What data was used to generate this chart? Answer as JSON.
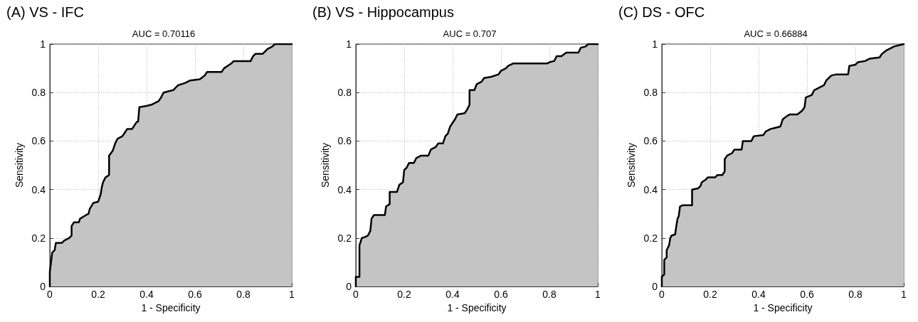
{
  "chart_data": [
    {
      "type": "area",
      "title": "(A) VS - IFC",
      "subtitle": "AUC = 0.70116",
      "xlabel": "1 - Specificity",
      "ylabel": "Sensitivity",
      "xlim": [
        0,
        1
      ],
      "ylim": [
        0,
        1
      ],
      "xticks": [
        0,
        0.2,
        0.4,
        0.6,
        0.8,
        1
      ],
      "yticks": [
        0,
        0.2,
        0.4,
        0.6,
        0.8,
        1
      ],
      "grid": true,
      "marker": "none",
      "line_style": "solid",
      "series": [
        {
          "color": "#c4c4c4",
          "x": [
            0,
            0,
            0.01,
            0.02,
            0.025,
            0.05,
            0.06,
            0.08,
            0.09,
            0.09,
            0.1,
            0.12,
            0.125,
            0.15,
            0.16,
            0.165,
            0.18,
            0.2,
            0.21,
            0.215,
            0.22,
            0.23,
            0.245,
            0.245,
            0.26,
            0.27,
            0.28,
            0.3,
            0.31,
            0.32,
            0.34,
            0.36,
            0.365,
            0.37,
            0.4,
            0.42,
            0.45,
            0.46,
            0.47,
            0.49,
            0.51,
            0.53,
            0.56,
            0.58,
            0.62,
            0.64,
            0.65,
            0.71,
            0.72,
            0.75,
            0.76,
            0.83,
            0.84,
            0.85,
            0.88,
            0.9,
            0.92,
            0.93,
            1
          ],
          "values": [
            0,
            0.06,
            0.14,
            0.15,
            0.18,
            0.18,
            0.19,
            0.2,
            0.21,
            0.25,
            0.265,
            0.265,
            0.28,
            0.295,
            0.3,
            0.32,
            0.345,
            0.35,
            0.38,
            0.41,
            0.43,
            0.45,
            0.46,
            0.54,
            0.56,
            0.59,
            0.61,
            0.62,
            0.635,
            0.65,
            0.65,
            0.68,
            0.68,
            0.74,
            0.745,
            0.75,
            0.765,
            0.78,
            0.8,
            0.805,
            0.81,
            0.83,
            0.84,
            0.85,
            0.855,
            0.87,
            0.885,
            0.885,
            0.9,
            0.92,
            0.93,
            0.93,
            0.95,
            0.96,
            0.96,
            0.98,
            0.99,
            1,
            1
          ]
        }
      ]
    },
    {
      "type": "area",
      "title": "(B) VS - Hippocampus",
      "subtitle": "AUC = 0.707",
      "xlabel": "1 - Specificity",
      "ylabel": "Sensitivity",
      "xlim": [
        0,
        1
      ],
      "ylim": [
        0,
        1
      ],
      "xticks": [
        0,
        0.2,
        0.4,
        0.6,
        0.8,
        1
      ],
      "yticks": [
        0,
        0.2,
        0.4,
        0.6,
        0.8,
        1
      ],
      "grid": true,
      "marker": "none",
      "line_style": "solid",
      "series": [
        {
          "color": "#c4c4c4",
          "x": [
            0,
            0,
            0.015,
            0.015,
            0.025,
            0.04,
            0.05,
            0.06,
            0.065,
            0.075,
            0.12,
            0.125,
            0.14,
            0.14,
            0.17,
            0.18,
            0.195,
            0.2,
            0.21,
            0.22,
            0.24,
            0.25,
            0.27,
            0.3,
            0.31,
            0.33,
            0.34,
            0.36,
            0.37,
            0.38,
            0.39,
            0.41,
            0.42,
            0.45,
            0.46,
            0.47,
            0.47,
            0.49,
            0.5,
            0.52,
            0.53,
            0.56,
            0.59,
            0.6,
            0.62,
            0.63,
            0.65,
            0.79,
            0.8,
            0.82,
            0.83,
            0.85,
            0.87,
            0.92,
            0.93,
            0.95,
            0.96,
            1
          ],
          "values": [
            0,
            0.04,
            0.04,
            0.17,
            0.2,
            0.205,
            0.21,
            0.23,
            0.28,
            0.295,
            0.295,
            0.33,
            0.34,
            0.39,
            0.39,
            0.42,
            0.43,
            0.48,
            0.49,
            0.51,
            0.51,
            0.53,
            0.54,
            0.54,
            0.565,
            0.575,
            0.59,
            0.59,
            0.62,
            0.63,
            0.66,
            0.69,
            0.71,
            0.715,
            0.73,
            0.75,
            0.81,
            0.81,
            0.835,
            0.845,
            0.86,
            0.865,
            0.875,
            0.89,
            0.9,
            0.91,
            0.92,
            0.92,
            0.925,
            0.93,
            0.95,
            0.95,
            0.965,
            0.965,
            0.985,
            0.99,
            1,
            1
          ]
        }
      ]
    },
    {
      "type": "area",
      "title": "(C) DS - OFC",
      "subtitle": "AUC = 0.66884",
      "xlabel": "1 - Specificity",
      "ylabel": "Sensitivity",
      "xlim": [
        0,
        1
      ],
      "ylim": [
        0,
        1
      ],
      "xticks": [
        0,
        0.2,
        0.4,
        0.6,
        0.8,
        1
      ],
      "yticks": [
        0,
        0.2,
        0.4,
        0.6,
        0.8,
        1
      ],
      "grid": true,
      "marker": "none",
      "line_style": "solid",
      "series": [
        {
          "color": "#c4c4c4",
          "x": [
            0,
            0,
            0.01,
            0.01,
            0.02,
            0.02,
            0.03,
            0.035,
            0.04,
            0.055,
            0.06,
            0.065,
            0.07,
            0.075,
            0.085,
            0.125,
            0.125,
            0.15,
            0.16,
            0.165,
            0.18,
            0.19,
            0.22,
            0.23,
            0.25,
            0.26,
            0.26,
            0.27,
            0.29,
            0.3,
            0.33,
            0.335,
            0.37,
            0.38,
            0.42,
            0.43,
            0.45,
            0.47,
            0.49,
            0.5,
            0.52,
            0.53,
            0.56,
            0.58,
            0.59,
            0.595,
            0.62,
            0.63,
            0.65,
            0.67,
            0.68,
            0.7,
            0.72,
            0.77,
            0.775,
            0.8,
            0.81,
            0.84,
            0.86,
            0.9,
            0.91,
            0.93,
            0.95,
            0.96,
            1
          ],
          "values": [
            0,
            0.04,
            0.05,
            0.11,
            0.12,
            0.15,
            0.17,
            0.2,
            0.21,
            0.215,
            0.25,
            0.28,
            0.29,
            0.33,
            0.335,
            0.335,
            0.4,
            0.405,
            0.415,
            0.43,
            0.44,
            0.45,
            0.45,
            0.46,
            0.46,
            0.475,
            0.525,
            0.54,
            0.55,
            0.565,
            0.565,
            0.6,
            0.6,
            0.62,
            0.625,
            0.64,
            0.65,
            0.655,
            0.66,
            0.69,
            0.705,
            0.71,
            0.71,
            0.725,
            0.74,
            0.78,
            0.79,
            0.81,
            0.82,
            0.83,
            0.85,
            0.87,
            0.875,
            0.875,
            0.91,
            0.915,
            0.925,
            0.93,
            0.94,
            0.945,
            0.96,
            0.975,
            0.985,
            0.99,
            1
          ]
        }
      ]
    }
  ]
}
